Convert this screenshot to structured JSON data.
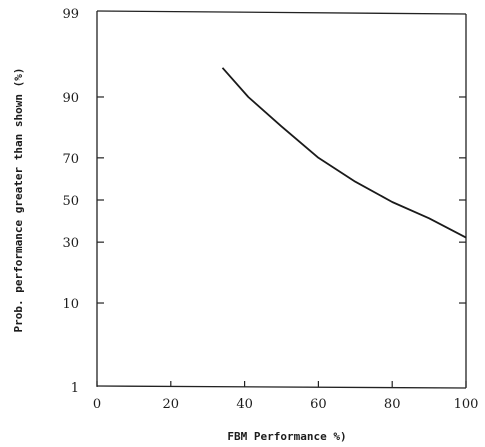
{
  "chart_data": {
    "type": "line",
    "xlabel": "FBM Performance %)",
    "ylabel": "Prob. performance greater than shown (%)",
    "xlim": [
      0,
      100
    ],
    "ylim": [
      1,
      99
    ],
    "y_scale": "probability",
    "grid": false,
    "x_ticks": [
      0,
      20,
      40,
      60,
      80,
      100
    ],
    "y_ticks": [
      1,
      10,
      30,
      50,
      70,
      90,
      99
    ],
    "series": [
      {
        "x": [
          34,
          41,
          50,
          60,
          70,
          80,
          90,
          100
        ],
        "y": [
          95,
          90,
          82,
          70,
          59,
          49,
          41,
          32
        ]
      }
    ]
  }
}
